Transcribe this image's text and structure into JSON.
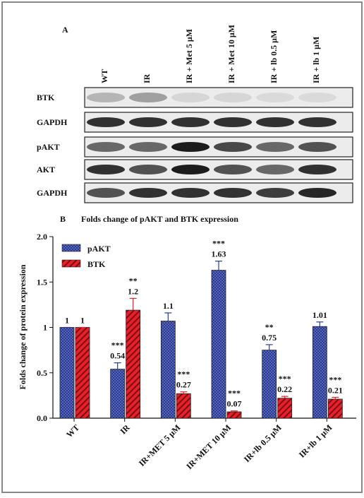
{
  "panel_a": {
    "label": "A",
    "columns": [
      "WT",
      "IR",
      "IR + Met 5 μM",
      "IR + Met 10 μM",
      "IR + lb 0.5 μM",
      "IR + lb 1 μM"
    ],
    "rows": [
      "BTK",
      "GAPDH",
      "pAKT",
      "AKT",
      "GAPDH"
    ]
  },
  "chart_data": {
    "type": "bar",
    "panel_label": "B",
    "title": "Folds change of pAKT and BTK expression",
    "ylabel": "Folds change of protein expression",
    "categories": [
      "WT",
      "IR",
      "IR+MET 5 μM",
      "IR+MET 10 μM",
      "IR+lb 0.5 μM",
      "IR+lb 1 μM"
    ],
    "series": [
      {
        "name": "pAKT",
        "color": "#2b3a8f",
        "values": [
          1,
          0.54,
          1.07,
          1.63,
          0.75,
          1.01
        ],
        "value_labels": [
          "1",
          "0.54",
          "1.1",
          "1.63",
          "0.75",
          "1.01"
        ],
        "errors": [
          0,
          0.07,
          0.09,
          0.1,
          0.06,
          0.05
        ],
        "significance": [
          null,
          "***",
          null,
          "***",
          "**",
          null
        ]
      },
      {
        "name": "BTK",
        "color": "#e8202a",
        "values": [
          1,
          1.19,
          0.27,
          0.07,
          0.22,
          0.21
        ],
        "value_labels": [
          "1",
          "1.2",
          "0.27",
          "0.07",
          "0.22",
          "0.21"
        ],
        "errors": [
          0,
          0.13,
          0.02,
          0.01,
          0.02,
          0.02
        ],
        "significance": [
          null,
          "**",
          "***",
          "***",
          "***",
          "***"
        ]
      }
    ],
    "ylim": [
      0,
      2
    ],
    "yticks": [
      {
        "value": 0,
        "label": "0.0"
      },
      0.5,
      1,
      1.5,
      {
        "value": 2,
        "label": "2.0"
      }
    ],
    "legend": "upper left"
  }
}
